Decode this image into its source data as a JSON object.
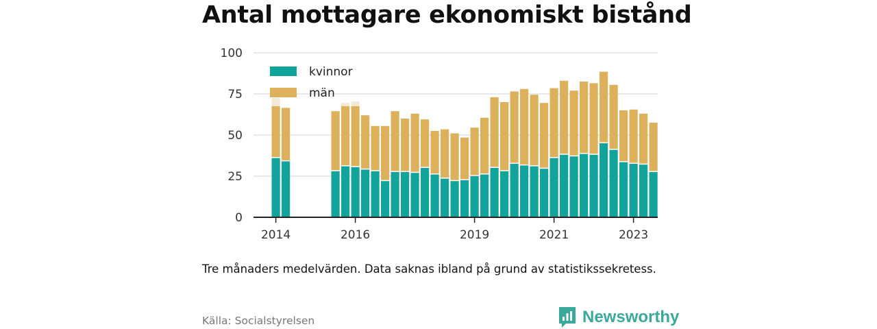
{
  "title": "Antal mottagare ekonomiskt bistånd",
  "note": "Tre månaders medelvärden. Data saknas ibland på grund av statistikssekretess.",
  "source": "Källa: Socialstyrelsen",
  "brand": "Newsworthy",
  "colors": {
    "kvinnor": "#12a49b",
    "man": "#ddb05c",
    "faded": "#f4e8d6",
    "grid": "#dcdcdc",
    "axis": "#222222",
    "brand": "#3aa89a"
  },
  "chart_data": {
    "type": "bar",
    "stacked": true,
    "title": "Antal mottagare ekonomiskt bistånd",
    "ylim": [
      0,
      100
    ],
    "yticks": [
      0,
      25,
      50,
      75,
      100
    ],
    "xticks": [
      {
        "label": "2014",
        "at": 1
      },
      {
        "label": "2016",
        "at": 9
      },
      {
        "label": "2019",
        "at": 21
      },
      {
        "label": "2021",
        "at": 29
      },
      {
        "label": "2023",
        "at": 37
      }
    ],
    "grid": true,
    "legend": "top-left",
    "series": [
      {
        "name": "kvinnor",
        "values": [
          null,
          36,
          34,
          null,
          null,
          null,
          null,
          28,
          31,
          30.5,
          29,
          28,
          22,
          27.5,
          27.5,
          27,
          30,
          26,
          23.5,
          22,
          22.5,
          25,
          26,
          30,
          28,
          32.5,
          31.5,
          31,
          29.5,
          36,
          38,
          37,
          38.5,
          38,
          45,
          41,
          33.5,
          32.5,
          32,
          27.5
        ]
      },
      {
        "name": "män",
        "values": [
          null,
          31.5,
          32.5,
          null,
          null,
          null,
          null,
          36.5,
          36.5,
          37,
          33,
          27.5,
          33.5,
          37,
          32.5,
          36,
          29.5,
          26.5,
          30,
          29,
          26,
          29.5,
          34.5,
          43,
          42,
          44,
          46.5,
          43.5,
          40,
          42.5,
          45,
          40,
          44,
          43.5,
          43.5,
          39.5,
          31.5,
          33,
          31,
          30
        ]
      }
    ],
    "faded_cap": [
      null,
      5,
      null,
      null,
      null,
      null,
      null,
      null,
      2,
      3,
      null,
      null,
      null,
      null,
      null,
      null,
      null,
      null,
      null,
      null,
      null,
      null,
      null,
      null,
      null,
      null,
      null,
      null,
      null,
      null,
      null,
      null,
      null,
      null,
      null,
      null,
      null,
      null,
      null,
      null
    ]
  }
}
